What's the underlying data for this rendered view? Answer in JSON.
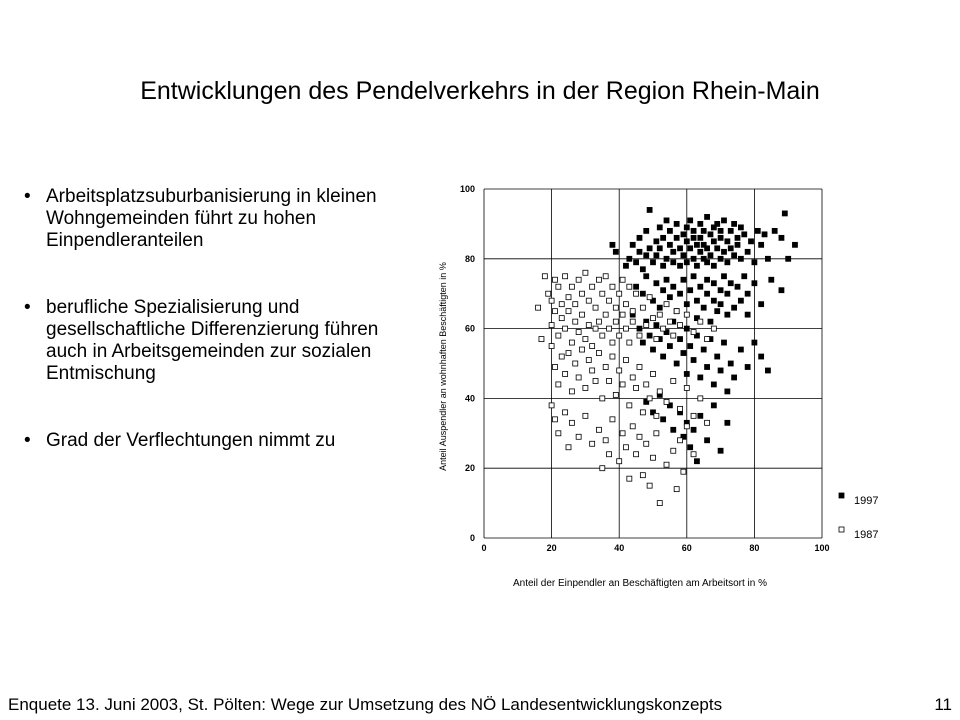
{
  "slide": {
    "title": "Entwicklungen des Pendelverkehrs in der Region Rhein-Main",
    "bullet_marker": "•",
    "bullets": [
      "Arbeitsplatzsuburbanisierung in kleinen Wohngemeinden führt zu hohen Einpendleranteilen",
      "berufliche Spezialisierung und gesellschaftliche Differenzierung führen auch in Arbeitsgemeinden zur sozialen Entmischung",
      "Grad der Verflechtungen nimmt zu"
    ],
    "footer": "Enquete 13. Juni 2003, St. Pölten: Wege zur Umsetzung des NÖ Landesentwicklungskonzepts",
    "page_number": "11"
  },
  "chart_data": {
    "type": "scatter",
    "xlabel": "Anteil der Einpendler an Beschäftigten am Arbeitsort in %",
    "ylabel": "Anteil Auspendler an wohnhaften Beschäftigten in %",
    "xlim": [
      0,
      100
    ],
    "ylim": [
      0,
      100
    ],
    "xticks": [
      "0",
      "20",
      "40",
      "60",
      "80",
      "100"
    ],
    "yticks": [
      "0",
      "20",
      "40",
      "60",
      "80",
      "100"
    ],
    "grid": true,
    "legend_position": "right-bottom",
    "series": [
      {
        "name": "1997",
        "marker": "filled-square",
        "color": "#000000",
        "points": [
          [
            38,
            84
          ],
          [
            39,
            82
          ],
          [
            42,
            78
          ],
          [
            43,
            80
          ],
          [
            44,
            84
          ],
          [
            45,
            79
          ],
          [
            46,
            86
          ],
          [
            46,
            82
          ],
          [
            47,
            77
          ],
          [
            48,
            88
          ],
          [
            48,
            81
          ],
          [
            49,
            94
          ],
          [
            49,
            83
          ],
          [
            50,
            79
          ],
          [
            51,
            85
          ],
          [
            51,
            81
          ],
          [
            52,
            89
          ],
          [
            52,
            83
          ],
          [
            53,
            78
          ],
          [
            53,
            86
          ],
          [
            54,
            91
          ],
          [
            54,
            80
          ],
          [
            55,
            84
          ],
          [
            55,
            88
          ],
          [
            56,
            82
          ],
          [
            56,
            79
          ],
          [
            57,
            86
          ],
          [
            57,
            90
          ],
          [
            58,
            83
          ],
          [
            58,
            78
          ],
          [
            59,
            87
          ],
          [
            59,
            81
          ],
          [
            60,
            85
          ],
          [
            60,
            89
          ],
          [
            60,
            79
          ],
          [
            61,
            83
          ],
          [
            61,
            91
          ],
          [
            62,
            86
          ],
          [
            62,
            80
          ],
          [
            62,
            88
          ],
          [
            63,
            84
          ],
          [
            63,
            78
          ],
          [
            64,
            90
          ],
          [
            64,
            82
          ],
          [
            64,
            86
          ],
          [
            65,
            88
          ],
          [
            65,
            80
          ],
          [
            65,
            84
          ],
          [
            66,
            92
          ],
          [
            66,
            83
          ],
          [
            66,
            79
          ],
          [
            67,
            87
          ],
          [
            67,
            81
          ],
          [
            68,
            89
          ],
          [
            68,
            85
          ],
          [
            68,
            78
          ],
          [
            69,
            83
          ],
          [
            69,
            90
          ],
          [
            70,
            86
          ],
          [
            70,
            80
          ],
          [
            70,
            88
          ],
          [
            71,
            82
          ],
          [
            71,
            91
          ],
          [
            72,
            85
          ],
          [
            72,
            79
          ],
          [
            73,
            88
          ],
          [
            73,
            83
          ],
          [
            74,
            90
          ],
          [
            74,
            81
          ],
          [
            75,
            86
          ],
          [
            75,
            84
          ],
          [
            76,
            89
          ],
          [
            76,
            80
          ],
          [
            77,
            87
          ],
          [
            78,
            82
          ],
          [
            79,
            85
          ],
          [
            80,
            79
          ],
          [
            81,
            88
          ],
          [
            82,
            84
          ],
          [
            83,
            87
          ],
          [
            84,
            80
          ],
          [
            86,
            88
          ],
          [
            88,
            86
          ],
          [
            89,
            93
          ],
          [
            90,
            80
          ],
          [
            92,
            84
          ],
          [
            45,
            72
          ],
          [
            47,
            70
          ],
          [
            48,
            75
          ],
          [
            50,
            68
          ],
          [
            51,
            73
          ],
          [
            52,
            66
          ],
          [
            53,
            71
          ],
          [
            54,
            74
          ],
          [
            55,
            69
          ],
          [
            56,
            72
          ],
          [
            57,
            65
          ],
          [
            58,
            70
          ],
          [
            59,
            74
          ],
          [
            60,
            67
          ],
          [
            61,
            71
          ],
          [
            62,
            75
          ],
          [
            63,
            68
          ],
          [
            63,
            63
          ],
          [
            64,
            72
          ],
          [
            65,
            66
          ],
          [
            66,
            70
          ],
          [
            66,
            74
          ],
          [
            67,
            62
          ],
          [
            68,
            68
          ],
          [
            68,
            73
          ],
          [
            69,
            65
          ],
          [
            70,
            71
          ],
          [
            70,
            67
          ],
          [
            71,
            75
          ],
          [
            72,
            64
          ],
          [
            72,
            70
          ],
          [
            73,
            73
          ],
          [
            74,
            66
          ],
          [
            75,
            72
          ],
          [
            76,
            68
          ],
          [
            77,
            75
          ],
          [
            78,
            64
          ],
          [
            78,
            70
          ],
          [
            80,
            73
          ],
          [
            82,
            67
          ],
          [
            85,
            74
          ],
          [
            88,
            71
          ],
          [
            44,
            64
          ],
          [
            46,
            60
          ],
          [
            47,
            56
          ],
          [
            48,
            62
          ],
          [
            49,
            58
          ],
          [
            50,
            54
          ],
          [
            51,
            61
          ],
          [
            52,
            57
          ],
          [
            53,
            52
          ],
          [
            54,
            59
          ],
          [
            55,
            55
          ],
          [
            56,
            62
          ],
          [
            57,
            50
          ],
          [
            58,
            57
          ],
          [
            59,
            53
          ],
          [
            60,
            60
          ],
          [
            60,
            47
          ],
          [
            61,
            55
          ],
          [
            62,
            51
          ],
          [
            63,
            58
          ],
          [
            64,
            46
          ],
          [
            65,
            54
          ],
          [
            66,
            49
          ],
          [
            67,
            57
          ],
          [
            68,
            44
          ],
          [
            69,
            52
          ],
          [
            70,
            48
          ],
          [
            71,
            56
          ],
          [
            72,
            42
          ],
          [
            73,
            50
          ],
          [
            74,
            46
          ],
          [
            76,
            54
          ],
          [
            78,
            49
          ],
          [
            80,
            56
          ],
          [
            82,
            52
          ],
          [
            84,
            48
          ],
          [
            48,
            39
          ],
          [
            50,
            36
          ],
          [
            52,
            41
          ],
          [
            53,
            34
          ],
          [
            55,
            38
          ],
          [
            56,
            31
          ],
          [
            58,
            36
          ],
          [
            59,
            29
          ],
          [
            60,
            33
          ],
          [
            61,
            26
          ],
          [
            62,
            31
          ],
          [
            63,
            22
          ],
          [
            64,
            35
          ],
          [
            66,
            28
          ],
          [
            68,
            38
          ],
          [
            70,
            25
          ],
          [
            72,
            33
          ]
        ]
      },
      {
        "name": "1987",
        "marker": "open-square",
        "color": "#000000",
        "points": [
          [
            16,
            66
          ],
          [
            17,
            57
          ],
          [
            18,
            75
          ],
          [
            19,
            70
          ],
          [
            20,
            68
          ],
          [
            20,
            61
          ],
          [
            21,
            74
          ],
          [
            21,
            65
          ],
          [
            22,
            72
          ],
          [
            22,
            58
          ],
          [
            23,
            67
          ],
          [
            23,
            63
          ],
          [
            24,
            75
          ],
          [
            24,
            60
          ],
          [
            25,
            69
          ],
          [
            25,
            65
          ],
          [
            26,
            72
          ],
          [
            26,
            56
          ],
          [
            27,
            67
          ],
          [
            27,
            62
          ],
          [
            28,
            74
          ],
          [
            28,
            59
          ],
          [
            29,
            70
          ],
          [
            29,
            64
          ],
          [
            30,
            76
          ],
          [
            30,
            57
          ],
          [
            31,
            68
          ],
          [
            31,
            61
          ],
          [
            32,
            72
          ],
          [
            32,
            55
          ],
          [
            33,
            66
          ],
          [
            33,
            60
          ],
          [
            34,
            74
          ],
          [
            34,
            62
          ],
          [
            35,
            70
          ],
          [
            35,
            58
          ],
          [
            36,
            75
          ],
          [
            36,
            64
          ],
          [
            37,
            68
          ],
          [
            37,
            60
          ],
          [
            38,
            72
          ],
          [
            38,
            56
          ],
          [
            39,
            66
          ],
          [
            39,
            62
          ],
          [
            40,
            70
          ],
          [
            40,
            58
          ],
          [
            41,
            74
          ],
          [
            41,
            64
          ],
          [
            42,
            67
          ],
          [
            42,
            60
          ],
          [
            43,
            72
          ],
          [
            43,
            56
          ],
          [
            44,
            65
          ],
          [
            44,
            62
          ],
          [
            45,
            70
          ],
          [
            46,
            58
          ],
          [
            47,
            66
          ],
          [
            48,
            61
          ],
          [
            49,
            69
          ],
          [
            50,
            63
          ],
          [
            51,
            57
          ],
          [
            52,
            64
          ],
          [
            53,
            60
          ],
          [
            54,
            67
          ],
          [
            55,
            62
          ],
          [
            56,
            58
          ],
          [
            57,
            65
          ],
          [
            58,
            61
          ],
          [
            60,
            64
          ],
          [
            62,
            59
          ],
          [
            64,
            62
          ],
          [
            66,
            57
          ],
          [
            68,
            60
          ],
          [
            20,
            55
          ],
          [
            21,
            49
          ],
          [
            22,
            44
          ],
          [
            23,
            52
          ],
          [
            24,
            47
          ],
          [
            25,
            53
          ],
          [
            26,
            42
          ],
          [
            27,
            50
          ],
          [
            28,
            46
          ],
          [
            29,
            54
          ],
          [
            30,
            43
          ],
          [
            31,
            51
          ],
          [
            32,
            48
          ],
          [
            33,
            45
          ],
          [
            34,
            53
          ],
          [
            35,
            40
          ],
          [
            36,
            49
          ],
          [
            37,
            45
          ],
          [
            38,
            52
          ],
          [
            39,
            41
          ],
          [
            40,
            48
          ],
          [
            41,
            44
          ],
          [
            42,
            51
          ],
          [
            43,
            38
          ],
          [
            44,
            46
          ],
          [
            45,
            43
          ],
          [
            46,
            49
          ],
          [
            47,
            36
          ],
          [
            48,
            44
          ],
          [
            49,
            40
          ],
          [
            50,
            47
          ],
          [
            51,
            35
          ],
          [
            52,
            42
          ],
          [
            54,
            39
          ],
          [
            56,
            45
          ],
          [
            58,
            37
          ],
          [
            60,
            43
          ],
          [
            62,
            35
          ],
          [
            64,
            40
          ],
          [
            66,
            33
          ],
          [
            20,
            38
          ],
          [
            21,
            34
          ],
          [
            22,
            30
          ],
          [
            24,
            36
          ],
          [
            25,
            26
          ],
          [
            26,
            33
          ],
          [
            28,
            29
          ],
          [
            30,
            35
          ],
          [
            32,
            27
          ],
          [
            34,
            31
          ],
          [
            35,
            20
          ],
          [
            36,
            28
          ],
          [
            37,
            24
          ],
          [
            38,
            34
          ],
          [
            40,
            22
          ],
          [
            41,
            30
          ],
          [
            42,
            26
          ],
          [
            43,
            17
          ],
          [
            44,
            32
          ],
          [
            45,
            24
          ],
          [
            46,
            29
          ],
          [
            47,
            18
          ],
          [
            48,
            27
          ],
          [
            49,
            15
          ],
          [
            50,
            23
          ],
          [
            51,
            30
          ],
          [
            52,
            10
          ],
          [
            54,
            21
          ],
          [
            56,
            25
          ],
          [
            57,
            14
          ],
          [
            58,
            28
          ],
          [
            59,
            19
          ],
          [
            60,
            32
          ],
          [
            62,
            24
          ]
        ]
      }
    ]
  }
}
